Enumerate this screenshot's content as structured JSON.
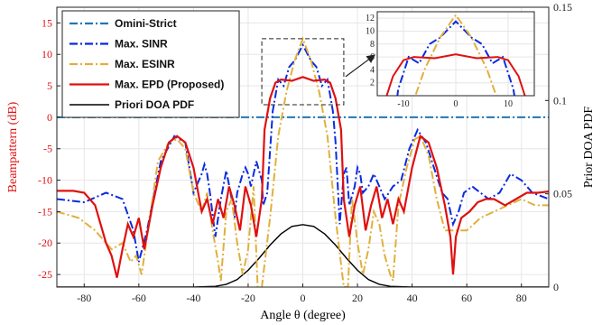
{
  "chart_data": {
    "type": "line",
    "xlabel": "Angle θ (degree)",
    "ylabel_left": "Beampattern (dB)",
    "ylabel_right": "Prior DOA PDF",
    "xlim": [
      -90,
      90
    ],
    "ylim_left": [
      -27,
      17.5
    ],
    "ylim_right": [
      0,
      0.15
    ],
    "x_ticks": [
      -80,
      -60,
      -40,
      -20,
      0,
      20,
      40,
      60,
      80
    ],
    "y_ticks_left": [
      -25,
      -20,
      -15,
      -10,
      -5,
      0,
      5,
      10,
      15
    ],
    "y_ticks_right": [
      0,
      0.05,
      0.1,
      0.15
    ],
    "grid": true,
    "legend_position": "top-left",
    "colors": {
      "omni": "#1f77b4",
      "sinr": "#0a2be0",
      "esinr": "#e0b03c",
      "epd": "#e01010",
      "pdf": "#000000",
      "left_axis": "#e01010",
      "grid": "#e6e6e6"
    },
    "series": [
      {
        "name": "Omini-Strict",
        "axis": "left",
        "style": "dashdot",
        "color": "#1f77b4",
        "x": [
          -90,
          90
        ],
        "y": [
          0,
          0
        ]
      },
      {
        "name": "Max. SINR",
        "axis": "left",
        "style": "dashdot",
        "color": "#0a2be0",
        "x": [
          -90,
          -80,
          -72,
          -66,
          -62,
          -60,
          -57,
          -52,
          -47,
          -43,
          -40,
          -37,
          -36,
          -35,
          -34,
          -32,
          -30,
          -28,
          -26,
          -25,
          -24,
          -22,
          -21,
          -20,
          -19,
          -17,
          -15,
          -14.5,
          -13,
          -11,
          -9,
          -7,
          -5,
          -3,
          0,
          3,
          5,
          7,
          9,
          11,
          12,
          13.5,
          15,
          16,
          17,
          19,
          20,
          21,
          22,
          24,
          26,
          28,
          30,
          33,
          36,
          39,
          42,
          45,
          48,
          51,
          53,
          55,
          57,
          59,
          62,
          65,
          68,
          72,
          76,
          80,
          84,
          90
        ],
        "y": [
          -13,
          -13.5,
          -12,
          -13,
          -18,
          -23,
          -18,
          -7,
          -3,
          -4,
          -12,
          -9,
          -7.5,
          -9,
          -12,
          -19,
          -13,
          -8.5,
          -13,
          -16,
          -12,
          -9,
          -8,
          -9,
          -11,
          -7,
          -10,
          -14,
          -12,
          1,
          6,
          5,
          8,
          9,
          11.5,
          9,
          8,
          5,
          6,
          1,
          -4,
          -17,
          -9,
          -8,
          -14,
          -11,
          -8,
          -9,
          -12,
          -11,
          -9,
          -11,
          -13,
          -11,
          -10,
          -5,
          -2,
          -4,
          -8,
          -12,
          -13,
          -17,
          -15,
          -12,
          -11,
          -12,
          -13,
          -12,
          -9,
          -10,
          -12,
          -13
        ]
      },
      {
        "name": "Max. ESINR",
        "axis": "left",
        "style": "dashdot",
        "color": "#e0b03c",
        "x": [
          -90,
          -82,
          -76,
          -70,
          -66,
          -63,
          -61,
          -59,
          -57,
          -53,
          -49,
          -46,
          -43,
          -40,
          -37,
          -35,
          -33,
          -31,
          -30,
          -28,
          -26,
          -24,
          -22,
          -20,
          -18,
          -16.5,
          -15,
          -12,
          -9,
          -6,
          -3,
          0,
          3,
          6,
          9,
          12,
          15,
          16.5,
          18,
          20,
          22,
          24,
          26,
          28,
          30,
          32,
          33,
          35,
          38,
          41,
          43,
          46,
          49,
          52,
          56,
          60,
          65,
          70,
          75,
          80,
          85,
          90
        ],
        "y": [
          -15,
          -16,
          -18,
          -21,
          -20,
          -23,
          -22,
          -25,
          -19,
          -7,
          -4,
          -3.5,
          -5,
          -12,
          -15,
          -12,
          -18,
          -23,
          -26,
          -15,
          -13,
          -20,
          -25,
          -21,
          -11,
          -27,
          -27,
          -16,
          -3,
          4,
          9,
          12.5,
          9,
          4,
          -3,
          -16,
          -27,
          -27,
          -13,
          -20,
          -25,
          -21,
          -15,
          -17,
          -22,
          -25,
          -26,
          -14,
          -8,
          -3.5,
          -3,
          -6,
          -13,
          -18,
          -18,
          -18,
          -16,
          -15,
          -14,
          -13,
          -14,
          -14
        ]
      },
      {
        "name": "Max. EPD (Proposed)",
        "axis": "left",
        "style": "solid",
        "color": "#e01010",
        "x": [
          -90,
          -84,
          -80,
          -76,
          -72,
          -70,
          -68,
          -66,
          -64,
          -62,
          -60,
          -58,
          -55,
          -52,
          -49,
          -46,
          -43,
          -40,
          -37,
          -35,
          -33,
          -31,
          -29,
          -27,
          -25,
          -23,
          -21,
          -19,
          -17,
          -15,
          -14,
          -12,
          -10,
          -8,
          -4,
          0,
          4,
          8,
          10,
          12,
          14,
          15,
          17,
          19,
          21,
          23,
          25,
          27,
          29,
          31,
          33,
          35,
          37,
          40,
          43,
          46,
          49,
          52,
          54,
          55,
          56,
          58,
          61,
          64,
          67,
          70,
          74,
          78,
          82,
          86,
          90
        ],
        "y": [
          -11.7,
          -11.7,
          -12,
          -14,
          -20,
          -22,
          -25.5,
          -21,
          -17,
          -19,
          -16,
          -21,
          -14,
          -8,
          -4,
          -3,
          -4,
          -8,
          -15,
          -13,
          -17,
          -13,
          -16,
          -11,
          -14,
          -18,
          -11,
          -14,
          -19,
          -13,
          -2,
          3,
          5.5,
          6,
          5.8,
          6.4,
          5.8,
          6,
          5.5,
          3,
          -2,
          -13,
          -19,
          -14,
          -11,
          -18,
          -14,
          -11,
          -16,
          -13,
          -17,
          -13,
          -15,
          -8,
          -3,
          -4,
          -8,
          -14,
          -19,
          -25,
          -19,
          -16,
          -15,
          -13.5,
          -13,
          -13,
          -14,
          -13,
          -12,
          -12,
          -11.8
        ]
      },
      {
        "name": "Priori DOA PDF",
        "axis": "right",
        "style": "solid",
        "color": "#000000",
        "x": [
          -90,
          -40,
          -32,
          -28,
          -24,
          -20,
          -16,
          -12,
          -8,
          -4,
          0,
          4,
          8,
          12,
          16,
          20,
          24,
          28,
          32,
          40,
          90
        ],
        "y": [
          0,
          0,
          0.0004,
          0.0015,
          0.004,
          0.009,
          0.0155,
          0.0225,
          0.0285,
          0.0325,
          0.0335,
          0.0325,
          0.0285,
          0.0225,
          0.0155,
          0.009,
          0.004,
          0.0015,
          0.0004,
          0,
          0
        ]
      }
    ],
    "inset": {
      "xlim": [
        -15,
        15
      ],
      "ylim": [
        0,
        13
      ],
      "x_ticks": [
        -10,
        0,
        10
      ],
      "y_ticks": [
        2,
        4,
        6,
        8,
        10,
        12
      ],
      "source_box_x": [
        -15,
        15
      ],
      "source_box_y": [
        2,
        12.5
      ]
    }
  }
}
